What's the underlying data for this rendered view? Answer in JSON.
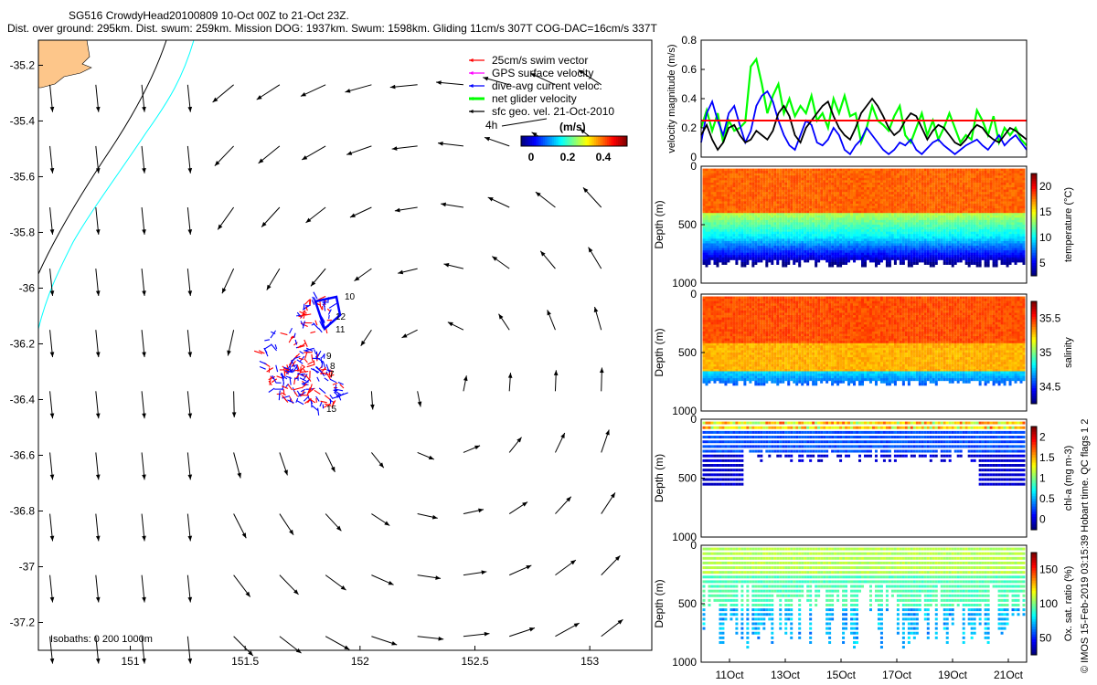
{
  "header": {
    "line1": "SG516 CrowdyHead20100809 10-Oct 00Z to 21-Oct 23Z.",
    "line2": "Dist. over ground: 295km. Dist. swum: 259km. Mission DOG: 1937km. Swum: 1598km. Gliding 11cm/s 307T COG-DAC=16cm/s 337T"
  },
  "credit": "© IMOS 15-Feb-2019 03:15:39 Hobart time. QC flags 1 2",
  "chart_data": [
    {
      "type": "scatter",
      "name": "map",
      "xlim": [
        150.6,
        153.27
      ],
      "ylim": [
        -37.3,
        -35.11
      ],
      "xticks": [
        151,
        151.5,
        152,
        152.5,
        153
      ],
      "xtick_labels": [
        "151",
        "151.5",
        "152",
        "152.5",
        "153"
      ],
      "yticks": [
        -35.2,
        -35.4,
        -35.6,
        -35.8,
        -36,
        -36.2,
        -36.4,
        -36.6,
        -36.8,
        -37,
        -37.2
      ],
      "ytick_labels": [
        "-35.2",
        "-35.4",
        "-35.6",
        "-35.8",
        "-36",
        "-36.2",
        "-36.4",
        "-36.6",
        "-36.8",
        "-37",
        "-37.2"
      ],
      "legend": {
        "entries": [
          {
            "label": "25cm/s swim vector",
            "color": "#ff0000"
          },
          {
            "label": "GPS surface velocity",
            "color": "#ff00ff"
          },
          {
            "label": "dive-avg current veloc.",
            "color": "#0000ff"
          },
          {
            "label": "net glider velocity",
            "color": "#00ff00"
          },
          {
            "label": "sfc geo. vel. 21-Oct-2010",
            "color": "#000000"
          }
        ],
        "placement": "top-center"
      },
      "time_marker": "4h",
      "colorbar": {
        "label": "(m/s)",
        "ticks": [
          "0",
          "0.2",
          "0.4"
        ]
      },
      "isobaths_label": "Isobaths: 0   200  1000m",
      "track_labels": [
        "10",
        "12",
        "11",
        "9",
        "8",
        "7",
        "15"
      ]
    },
    {
      "type": "line",
      "name": "velocity",
      "ylabel": "velocity magnitude (m/s)",
      "ylim": [
        0,
        0.8
      ],
      "yticks": [
        "0",
        "0.2",
        "0.4",
        "0.6",
        "0.8"
      ],
      "reference_line": 0.25,
      "series": [
        {
          "color": "#00ff00",
          "values": [
            0.2,
            0.32,
            0.18,
            0.3,
            0.1,
            0.25,
            0.18,
            0.2,
            0.24,
            0.62,
            0.67,
            0.5,
            0.3,
            0.42,
            0.5,
            0.3,
            0.4,
            0.28,
            0.35,
            0.3,
            0.42,
            0.25,
            0.3,
            0.2,
            0.4,
            0.3,
            0.42,
            0.28,
            0.3,
            0.1,
            0.2,
            0.35,
            0.25,
            0.22,
            0.18,
            0.28,
            0.35,
            0.15,
            0.1,
            0.2,
            0.3,
            0.15,
            0.25,
            0.12,
            0.2,
            0.3,
            0.2,
            0.1,
            0.15,
            0.12,
            0.32,
            0.25,
            0.15,
            0.28,
            0.1,
            0.2,
            0.15,
            0.2,
            0.12,
            0.08
          ]
        },
        {
          "color": "#0000ff",
          "values": [
            0.1,
            0.3,
            0.38,
            0.25,
            0.15,
            0.3,
            0.35,
            0.22,
            0.1,
            0.18,
            0.35,
            0.42,
            0.45,
            0.38,
            0.25,
            0.15,
            0.08,
            0.05,
            0.15,
            0.25,
            0.22,
            0.1,
            0.08,
            0.12,
            0.2,
            0.15,
            0.05,
            0.02,
            0.08,
            0.12,
            0.2,
            0.15,
            0.1,
            0.05,
            0.02,
            0.05,
            0.1,
            0.08,
            0.12,
            0.05,
            0.02,
            0.06,
            0.1,
            0.12,
            0.08,
            0.05,
            0.02,
            0.05,
            0.08,
            0.1,
            0.12,
            0.08,
            0.05,
            0.1,
            0.15,
            0.08,
            0.12,
            0.15,
            0.1,
            0.05
          ]
        },
        {
          "color": "#000000",
          "values": [
            0.15,
            0.22,
            0.12,
            0.05,
            0.1,
            0.2,
            0.22,
            0.15,
            0.1,
            0.12,
            0.18,
            0.15,
            0.12,
            0.18,
            0.3,
            0.35,
            0.28,
            0.15,
            0.1,
            0.2,
            0.25,
            0.3,
            0.35,
            0.38,
            0.28,
            0.2,
            0.15,
            0.12,
            0.2,
            0.3,
            0.35,
            0.4,
            0.35,
            0.28,
            0.2,
            0.15,
            0.18,
            0.25,
            0.3,
            0.28,
            0.2,
            0.12,
            0.18,
            0.22,
            0.2,
            0.15,
            0.1,
            0.08,
            0.12,
            0.18,
            0.22,
            0.2,
            0.15,
            0.12,
            0.1,
            0.15,
            0.2,
            0.18,
            0.15,
            0.12
          ]
        }
      ]
    },
    {
      "type": "scatter",
      "name": "temperature",
      "ylabel": "Depth (m)",
      "yticks": [
        "0",
        "500",
        "1000"
      ],
      "colorbar": {
        "label": "temperature (°C)",
        "ticks": [
          "5",
          "10",
          "15",
          "20"
        ]
      }
    },
    {
      "type": "scatter",
      "name": "salinity",
      "ylabel": "Depth (m)",
      "yticks": [
        "0",
        "500",
        "1000"
      ],
      "colorbar": {
        "label": "salinity",
        "ticks": [
          "34.5",
          "35",
          "35.5"
        ]
      }
    },
    {
      "type": "scatter",
      "name": "chla",
      "ylabel": "Depth (m)",
      "yticks": [
        "0",
        "500",
        "1000"
      ],
      "colorbar": {
        "label": "chl-a (mg m-3)",
        "ticks": [
          "0",
          "0.5",
          "1",
          "1.5",
          "2"
        ]
      }
    },
    {
      "type": "scatter",
      "name": "oxygen",
      "ylabel": "Depth (m)",
      "yticks": [
        "0",
        "500",
        "1000"
      ],
      "colorbar": {
        "label": "Ox. sat. ratio (%)",
        "ticks": [
          "50",
          "100",
          "150"
        ]
      },
      "xtick_labels": [
        "11Oct",
        "13Oct",
        "15Oct",
        "17Oct",
        "19Oct",
        "21Oct"
      ]
    }
  ]
}
